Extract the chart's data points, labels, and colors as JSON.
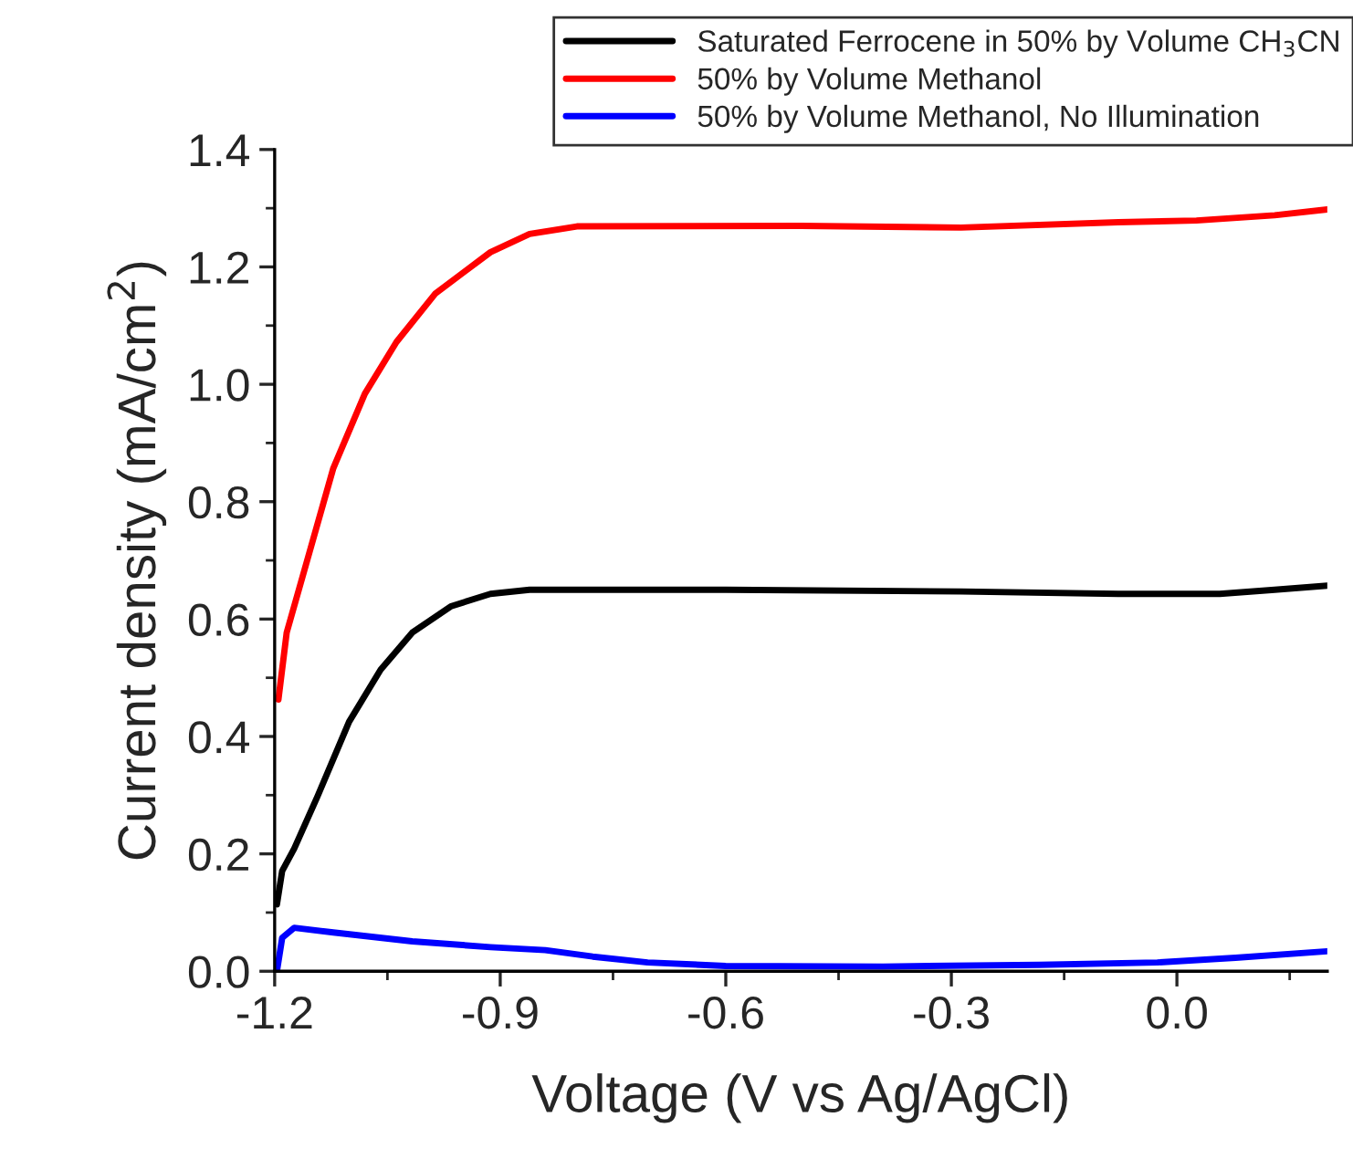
{
  "chart_data": {
    "type": "line",
    "xlabel": "Voltage (V vs Ag/AgCl)",
    "ylabel": "Current density (mA/cm$^{2}$)",
    "xlim": [
      -1.2,
      0.2
    ],
    "xticks": [
      -1.2,
      -0.9,
      -0.6,
      -0.3,
      {
        "value": 0,
        "label": "0.0"
      }
    ],
    "ylim": [
      0,
      1.4
    ],
    "yticks": [
      {
        "value": 0,
        "label": "0.0"
      },
      0.2,
      0.4,
      0.6,
      0.8,
      {
        "value": 1,
        "label": "1.0"
      },
      1.2,
      1.4
    ],
    "legend": "top right",
    "grid": false,
    "line_style": "solid",
    "marker": "none",
    "series": [
      {
        "name": "Saturated Ferrocene in 50% by Volume CH$_{3}$CN",
        "color": "#000000",
        "x": [
          -1.197,
          -1.19,
          -1.174,
          -1.143,
          -1.101,
          -1.059,
          -1.017,
          -0.965,
          -0.913,
          -0.861,
          -0.6,
          -0.287,
          -0.078,
          0.057,
          0.13,
          0.2
        ],
        "values": [
          0.114,
          0.171,
          0.209,
          0.298,
          0.425,
          0.514,
          0.577,
          0.622,
          0.643,
          0.65,
          0.65,
          0.647,
          0.643,
          0.643,
          0.65,
          0.657
        ]
      },
      {
        "name": "50% by Volume Methanol",
        "color": "#ff0000",
        "x": [
          -1.195,
          -1.184,
          -1.153,
          -1.122,
          -1.08,
          -1.038,
          -0.986,
          -0.913,
          -0.861,
          -0.798,
          -0.5,
          -0.287,
          -0.078,
          0.026,
          0.13,
          0.2
        ],
        "values": [
          0.463,
          0.577,
          0.717,
          0.857,
          0.984,
          1.072,
          1.155,
          1.225,
          1.256,
          1.269,
          1.27,
          1.267,
          1.276,
          1.279,
          1.288,
          1.298
        ]
      },
      {
        "name": "50% by Volume Methanol, No Illumination",
        "color": "#0000ff",
        "x": [
          -1.197,
          -1.19,
          -1.174,
          -1.122,
          -1.017,
          -0.913,
          -0.84,
          -0.777,
          -0.704,
          -0.6,
          -0.391,
          -0.183,
          -0.026,
          0.078,
          0.2
        ],
        "values": [
          0.0,
          0.057,
          0.074,
          0.066,
          0.051,
          0.041,
          0.036,
          0.025,
          0.015,
          0.009,
          0.008,
          0.011,
          0.015,
          0.023,
          0.034
        ]
      }
    ]
  }
}
